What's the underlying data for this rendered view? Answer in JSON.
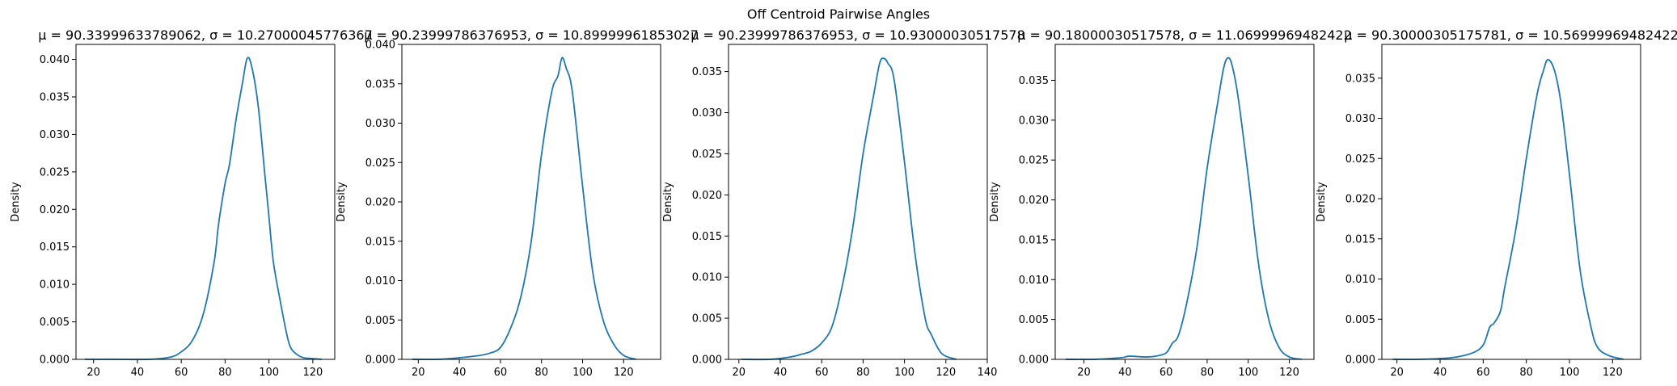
{
  "suptitle": "Off Centroid Pairwise Angles",
  "chart_data": [
    {
      "type": "line",
      "title": "μ = 90.33999633789062, σ = 10.27000045776367",
      "ylabel": "Density",
      "xlim": [
        12,
        130
      ],
      "ylim": [
        0,
        0.042
      ],
      "xticks": [
        20,
        40,
        60,
        80,
        100,
        120
      ],
      "yticks": [
        0.0,
        0.005,
        0.01,
        0.015,
        0.02,
        0.025,
        0.03,
        0.035,
        0.04
      ],
      "ytick_labels": [
        "0.000",
        "0.005",
        "0.010",
        "0.015",
        "0.020",
        "0.025",
        "0.030",
        "0.035",
        "0.040"
      ],
      "color": "#1f77b4",
      "x": [
        16,
        30,
        45,
        55,
        60,
        65,
        70,
        75,
        77,
        80,
        82,
        85,
        88,
        90,
        92,
        95,
        98,
        100,
        102,
        105,
        108,
        110,
        113,
        116,
        120,
        124
      ],
      "y": [
        0.0,
        0.0,
        0.0,
        0.0003,
        0.001,
        0.0025,
        0.006,
        0.013,
        0.018,
        0.0235,
        0.026,
        0.032,
        0.037,
        0.0401,
        0.0392,
        0.034,
        0.025,
        0.019,
        0.013,
        0.008,
        0.0035,
        0.0015,
        0.0006,
        0.0002,
        0.0001,
        0.0
      ]
    },
    {
      "type": "line",
      "title": "μ = 90.23999786376953, σ = 10.89999961853027",
      "ylabel": "Density",
      "xlim": [
        12,
        138
      ],
      "ylim": [
        0,
        0.04
      ],
      "xticks": [
        20,
        40,
        60,
        80,
        100,
        120
      ],
      "yticks": [
        0.0,
        0.005,
        0.01,
        0.015,
        0.02,
        0.025,
        0.03,
        0.035,
        0.04
      ],
      "ytick_labels": [
        "0.000",
        "0.005",
        "0.010",
        "0.015",
        "0.020",
        "0.025",
        "0.030",
        "0.035",
        "0.040"
      ],
      "color": "#1f77b4",
      "x": [
        17,
        30,
        40,
        50,
        55,
        60,
        65,
        70,
        75,
        80,
        85,
        88,
        90,
        92,
        95,
        100,
        105,
        110,
        115,
        120,
        126
      ],
      "y": [
        0.0,
        0.0,
        0.0002,
        0.0005,
        0.0008,
        0.0015,
        0.004,
        0.008,
        0.015,
        0.026,
        0.034,
        0.036,
        0.0383,
        0.037,
        0.034,
        0.022,
        0.011,
        0.005,
        0.002,
        0.0005,
        0.0
      ]
    },
    {
      "type": "line",
      "title": "μ = 90.23999786376953, σ = 10.93000030517578",
      "ylabel": "Density",
      "xlim": [
        15,
        140
      ],
      "ylim": [
        0,
        0.0383
      ],
      "xticks": [
        20,
        40,
        60,
        80,
        100,
        120,
        140
      ],
      "yticks": [
        0.0,
        0.005,
        0.01,
        0.015,
        0.02,
        0.025,
        0.03,
        0.035
      ],
      "ytick_labels": [
        "0.000",
        "0.005",
        "0.010",
        "0.015",
        "0.020",
        "0.025",
        "0.030",
        "0.035"
      ],
      "color": "#1f77b4",
      "x": [
        21,
        35,
        45,
        50,
        55,
        60,
        65,
        70,
        75,
        80,
        85,
        88,
        90,
        92,
        95,
        100,
        105,
        110,
        113,
        118,
        125
      ],
      "y": [
        0.0,
        0.0,
        0.0003,
        0.0006,
        0.001,
        0.002,
        0.004,
        0.009,
        0.016,
        0.025,
        0.032,
        0.036,
        0.0366,
        0.036,
        0.034,
        0.024,
        0.013,
        0.005,
        0.003,
        0.0007,
        0.0
      ]
    },
    {
      "type": "line",
      "title": "μ = 90.18000030517578, σ = 11.06999969482422",
      "ylabel": "Density",
      "xlim": [
        6,
        132
      ],
      "ylim": [
        0,
        0.0395
      ],
      "xticks": [
        20,
        40,
        60,
        80,
        100,
        120
      ],
      "yticks": [
        0.0,
        0.005,
        0.01,
        0.015,
        0.02,
        0.025,
        0.03,
        0.035
      ],
      "ytick_labels": [
        "0.000",
        "0.005",
        "0.010",
        "0.015",
        "0.020",
        "0.025",
        "0.030",
        "0.035"
      ],
      "color": "#1f77b4",
      "x": [
        11,
        25,
        38,
        42,
        50,
        55,
        60,
        63,
        66,
        70,
        75,
        80,
        85,
        88,
        90,
        92,
        95,
        100,
        105,
        110,
        115,
        120,
        126
      ],
      "y": [
        0.0,
        0.0,
        0.0002,
        0.0004,
        0.0003,
        0.0004,
        0.0008,
        0.002,
        0.003,
        0.007,
        0.014,
        0.024,
        0.032,
        0.0365,
        0.0378,
        0.037,
        0.033,
        0.023,
        0.012,
        0.005,
        0.0015,
        0.0003,
        0.0
      ]
    },
    {
      "type": "line",
      "title": "μ = 90.30000305175781, σ = 10.56999969482422",
      "ylabel": "Density",
      "xlim": [
        13,
        133
      ],
      "ylim": [
        0,
        0.0392
      ],
      "xticks": [
        20,
        40,
        60,
        80,
        100,
        120
      ],
      "yticks": [
        0.0,
        0.005,
        0.01,
        0.015,
        0.02,
        0.025,
        0.03,
        0.035
      ],
      "ytick_labels": [
        "0.000",
        "0.005",
        "0.010",
        "0.015",
        "0.020",
        "0.025",
        "0.030",
        "0.035"
      ],
      "color": "#1f77b4",
      "x": [
        18,
        30,
        45,
        55,
        60,
        63,
        65,
        68,
        70,
        75,
        80,
        85,
        88,
        90,
        93,
        96,
        100,
        105,
        110,
        113,
        118,
        125
      ],
      "y": [
        0.0,
        0.0,
        0.0002,
        0.0008,
        0.0018,
        0.004,
        0.0045,
        0.006,
        0.009,
        0.016,
        0.025,
        0.033,
        0.036,
        0.0373,
        0.036,
        0.032,
        0.023,
        0.011,
        0.004,
        0.0015,
        0.0005,
        0.0
      ]
    }
  ]
}
